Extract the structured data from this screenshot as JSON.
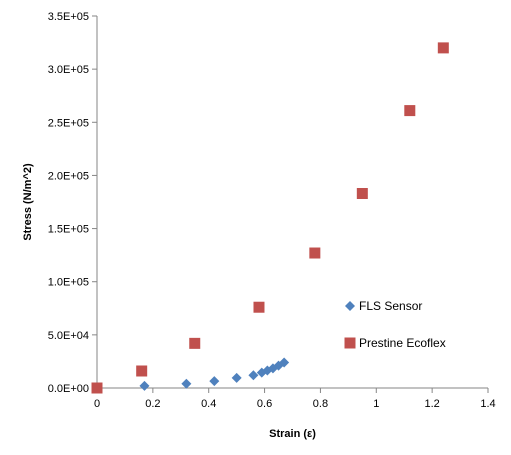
{
  "chart_data": {
    "type": "scatter",
    "title": "",
    "xlabel": "Strain (ε)",
    "ylabel": "Stress (N/m^2)",
    "xlim": [
      0,
      1.4
    ],
    "ylim": [
      0,
      350000
    ],
    "x_ticks": [
      0,
      0.2,
      0.4,
      0.6,
      0.8,
      1,
      1.2,
      1.4
    ],
    "x_tick_labels": [
      "0",
      "0.2",
      "0.4",
      "0.6",
      "0.8",
      "1",
      "1.2",
      "1.4"
    ],
    "y_ticks": [
      0,
      50000,
      100000,
      150000,
      200000,
      250000,
      300000,
      350000
    ],
    "y_tick_labels": [
      "0.0E+00",
      "5.0E+04",
      "1.0E+05",
      "1.5E+05",
      "2.0E+05",
      "2.5E+05",
      "3.0E+05",
      "3.5E+05"
    ],
    "grid": false,
    "legend_position": "right-center",
    "series": [
      {
        "name": "FLS Sensor",
        "marker": "diamond",
        "color": "#4f81bd",
        "points": [
          [
            0.17,
            2000
          ],
          [
            0.32,
            4000
          ],
          [
            0.42,
            6500
          ],
          [
            0.5,
            9500
          ],
          [
            0.56,
            12000
          ],
          [
            0.59,
            14500
          ],
          [
            0.61,
            16500
          ],
          [
            0.63,
            18500
          ],
          [
            0.65,
            21000
          ],
          [
            0.67,
            24000
          ]
        ]
      },
      {
        "name": "Prestine Ecoflex",
        "marker": "square",
        "color": "#c0504d",
        "points": [
          [
            0,
            0
          ],
          [
            0.16,
            16000
          ],
          [
            0.35,
            42000
          ],
          [
            0.58,
            76000
          ],
          [
            0.78,
            127000
          ],
          [
            0.95,
            183000
          ],
          [
            1.12,
            261000
          ],
          [
            1.24,
            320000
          ]
        ]
      }
    ]
  }
}
